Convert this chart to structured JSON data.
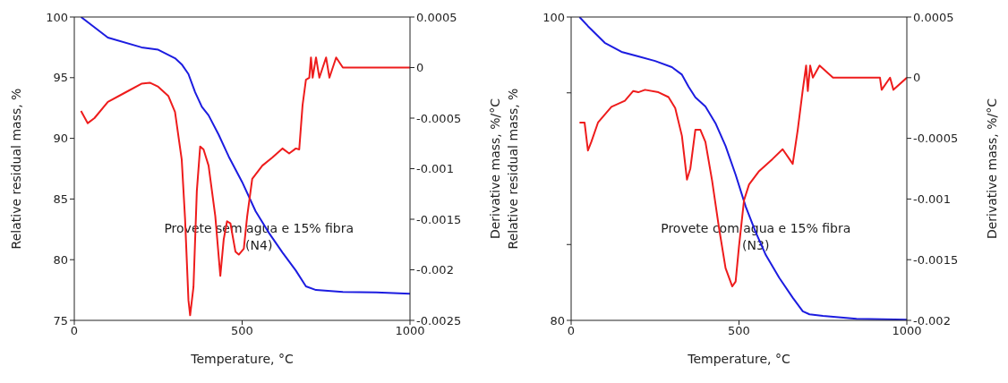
{
  "chart_data": [
    {
      "type": "line",
      "xlabel": "Temperature, °C",
      "ylabel": "Relative residual mass, %",
      "y2label": "Derivative mass, %/°C",
      "annotations": [
        "Provete sem agua e 15% fibra\n(N4)"
      ],
      "xlim": [
        0,
        1000
      ],
      "xticks": [
        0,
        500,
        1000
      ],
      "ylim": [
        75,
        100
      ],
      "yticks": [
        75,
        80,
        85,
        90,
        95,
        100
      ],
      "y2lim": [
        -0.0025,
        0.0005
      ],
      "y2ticks": [
        -0.0025,
        -0.002,
        -0.0015,
        -0.001,
        -0.0005,
        0,
        0.0005
      ],
      "grid": false,
      "legend": false,
      "series": [
        {
          "color": "#1c1ce0",
          "x": [
            20,
            100,
            200,
            250,
            300,
            320,
            340,
            360,
            380,
            400,
            430,
            460,
            500,
            540,
            580,
            620,
            660,
            690,
            720,
            800,
            900,
            1000
          ],
          "values": [
            100,
            98.3,
            97.5,
            97.3,
            96.6,
            96.1,
            95.3,
            93.8,
            92.6,
            91.9,
            90.3,
            88.5,
            86.4,
            84.0,
            82.2,
            80.6,
            79.1,
            77.8,
            77.5,
            77.35,
            77.3,
            77.2
          ]
        },
        {
          "color": "#ee1c1c",
          "axis": "y2",
          "x": [
            20,
            40,
            60,
            100,
            150,
            200,
            225,
            250,
            280,
            300,
            320,
            330,
            340,
            345,
            355,
            365,
            375,
            385,
            400,
            420,
            435,
            445,
            455,
            465,
            480,
            490,
            505,
            515,
            530,
            560,
            590,
            620,
            640,
            660,
            670,
            680,
            690,
            700,
            705,
            710,
            720,
            730,
            750,
            760,
            780,
            800,
            850,
            900,
            1000
          ],
          "values": [
            -0.00043,
            -0.00055,
            -0.0005,
            -0.00034,
            -0.00025,
            -0.00016,
            -0.00015,
            -0.00019,
            -0.00028,
            -0.00044,
            -0.00091,
            -0.0015,
            -0.0023,
            -0.00245,
            -0.00217,
            -0.00122,
            -0.00078,
            -0.00081,
            -0.00097,
            -0.00147,
            -0.00206,
            -0.0017,
            -0.00152,
            -0.00154,
            -0.00182,
            -0.00185,
            -0.00179,
            -0.00147,
            -0.0011,
            -0.00097,
            -0.00089,
            -0.0008,
            -0.00085,
            -0.0008,
            -0.00081,
            -0.00037,
            -0.00012,
            -0.0001,
            0.0001,
            -0.0001,
            0.0001,
            -0.0001,
            0.0001,
            -0.0001,
            0.0001,
            0,
            0,
            0,
            0
          ]
        }
      ]
    },
    {
      "type": "line",
      "xlabel": "Temperature, °C",
      "ylabel": "Relative residual mass, %",
      "y2label": "Derivative mass, %/°C",
      "annotations": [
        "Provete com agua e 15% fibra\n(N3)"
      ],
      "xlim": [
        0,
        1000
      ],
      "xticks": [
        0,
        500,
        1000
      ],
      "ylim": [
        80,
        100
      ],
      "yticks": [
        80,
        {
          "value": 85,
          "label": null
        },
        {
          "value": 95,
          "label": null
        },
        100
      ],
      "y2lim": [
        -0.002,
        0.0005
      ],
      "y2ticks": [
        -0.002,
        -0.0015,
        -0.001,
        -0.0005,
        0,
        0.0005
      ],
      "grid": false,
      "legend": false,
      "series": [
        {
          "color": "#1c1ce0",
          "x": [
            25,
            50,
            100,
            150,
            200,
            250,
            300,
            330,
            350,
            370,
            400,
            430,
            460,
            490,
            520,
            550,
            580,
            620,
            660,
            690,
            710,
            750,
            850,
            1000
          ],
          "values": [
            100,
            99.4,
            98.3,
            97.7,
            97.4,
            97.1,
            96.7,
            96.2,
            95.4,
            94.7,
            94.1,
            93.0,
            91.5,
            89.6,
            87.5,
            85.8,
            84.3,
            82.8,
            81.5,
            80.6,
            80.4,
            80.3,
            80.1,
            80.05
          ]
        },
        {
          "color": "#ee1c1c",
          "axis": "y2",
          "x": [
            25,
            40,
            50,
            60,
            80,
            120,
            160,
            185,
            200,
            220,
            260,
            290,
            310,
            330,
            345,
            355,
            370,
            385,
            400,
            420,
            440,
            460,
            480,
            490,
            500,
            515,
            530,
            560,
            600,
            630,
            650,
            660,
            675,
            690,
            700,
            705,
            712,
            720,
            740,
            780,
            800,
            860,
            920,
            925,
            950,
            960,
            1000
          ],
          "values": [
            -0.00037,
            -0.00037,
            -0.0006,
            -0.00053,
            -0.00037,
            -0.00024,
            -0.00019,
            -0.00011,
            -0.00012,
            -0.0001,
            -0.00012,
            -0.00016,
            -0.00025,
            -0.00048,
            -0.00084,
            -0.00075,
            -0.00043,
            -0.00043,
            -0.00053,
            -0.00085,
            -0.00123,
            -0.00157,
            -0.00172,
            -0.00168,
            -0.00139,
            -0.00101,
            -0.00088,
            -0.00077,
            -0.00067,
            -0.00059,
            -0.00067,
            -0.00071,
            -0.00043,
            -0.0001,
            0.0001,
            -0.00011,
            0.0001,
            0,
            0.0001,
            0,
            0,
            0,
            0,
            -0.0001,
            0,
            -0.0001,
            0
          ]
        }
      ]
    }
  ]
}
